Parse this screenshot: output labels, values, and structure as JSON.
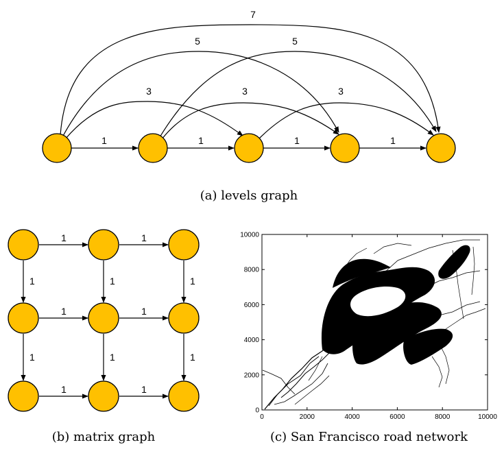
{
  "levels_graph": {
    "caption": "(a) levels graph",
    "edges": [
      {
        "label": "1"
      },
      {
        "label": "1"
      },
      {
        "label": "1"
      },
      {
        "label": "1"
      },
      {
        "label": "3"
      },
      {
        "label": "3"
      },
      {
        "label": "3"
      },
      {
        "label": "5"
      },
      {
        "label": "5"
      },
      {
        "label": "7"
      }
    ]
  },
  "matrix_graph": {
    "caption": "(b) matrix graph",
    "edges": [
      {
        "label": "1"
      },
      {
        "label": "1"
      },
      {
        "label": "1"
      },
      {
        "label": "1"
      },
      {
        "label": "1"
      },
      {
        "label": "1"
      },
      {
        "label": "1"
      },
      {
        "label": "1"
      },
      {
        "label": "1"
      },
      {
        "label": "1"
      },
      {
        "label": "1"
      },
      {
        "label": "1"
      }
    ]
  },
  "road_network": {
    "caption": "(c) San Francisco road network",
    "x_ticks": [
      "0",
      "2000",
      "4000",
      "6000",
      "8000",
      "10000"
    ],
    "y_ticks": [
      "0",
      "2000",
      "4000",
      "6000",
      "8000",
      "10000"
    ]
  },
  "chart_data": {
    "type": "scatter",
    "x_ticks": [
      0,
      2000,
      4000,
      6000,
      8000,
      10000
    ],
    "y_ticks": [
      0,
      2000,
      4000,
      6000,
      8000,
      10000
    ],
    "xlim": [
      0,
      10000
    ],
    "ylim": [
      0,
      10000
    ],
    "grid": false
  },
  "colors": {
    "node_fill": "#FFC000",
    "stroke": "#000000"
  }
}
